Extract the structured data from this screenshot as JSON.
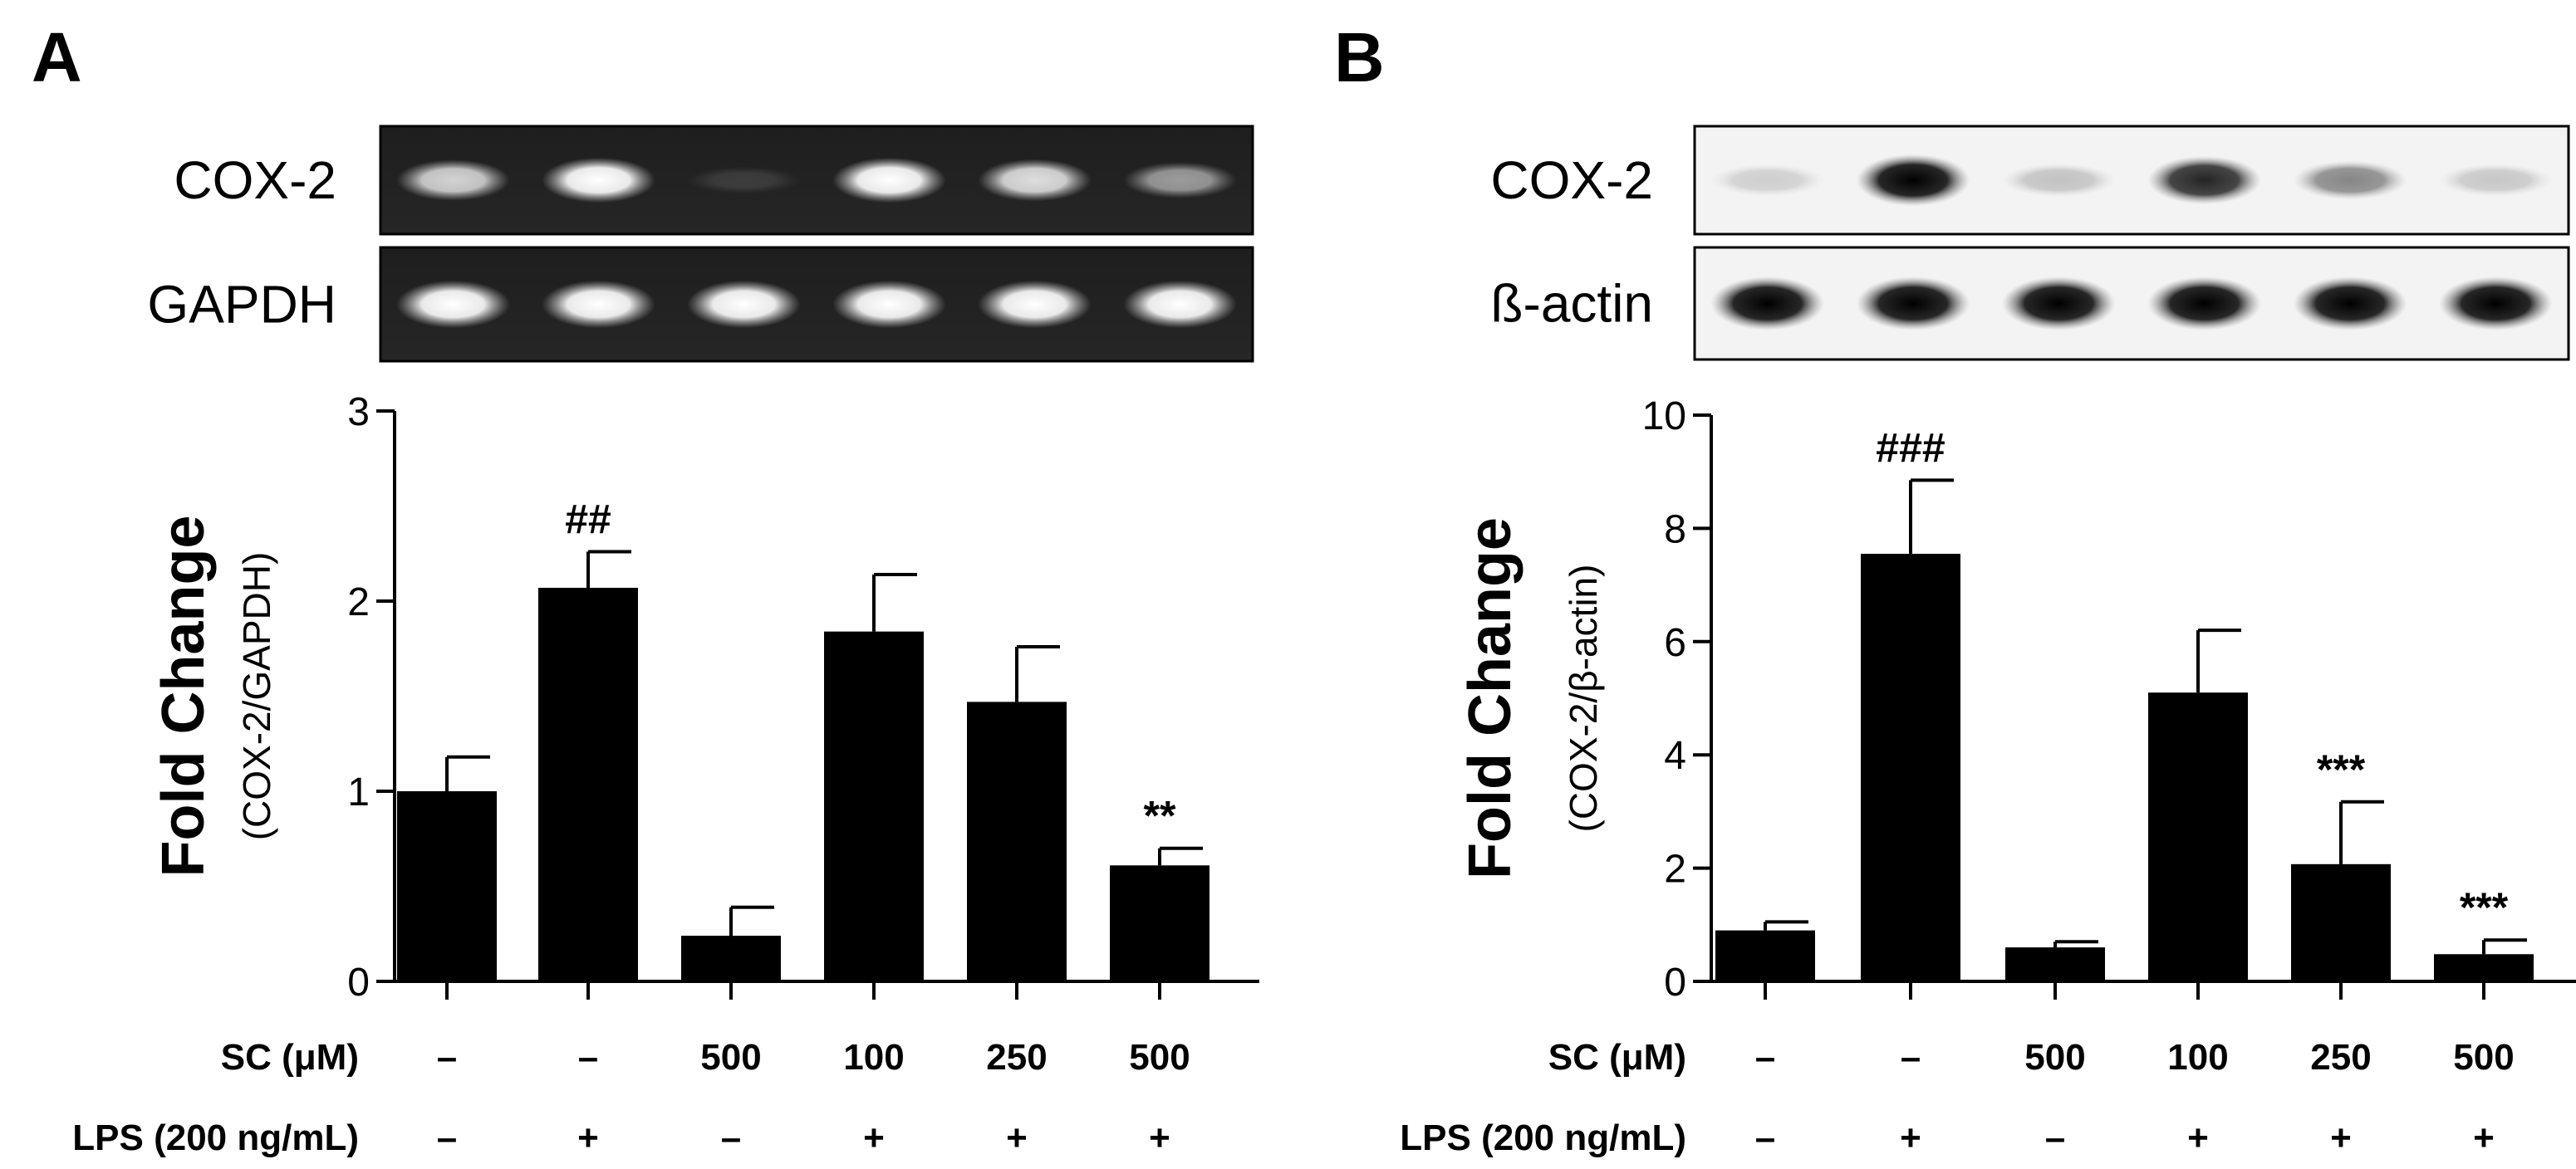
{
  "chart_data": [
    {
      "type": "bar",
      "panel": "A",
      "blot": {
        "style": "gel",
        "rows": [
          {
            "label": "COX-2",
            "intensities": [
              0.8,
              1.0,
              0.12,
              1.0,
              0.85,
              0.55
            ]
          },
          {
            "label": "GAPDH",
            "intensities": [
              1.0,
              1.0,
              1.0,
              1.0,
              1.0,
              1.0
            ]
          }
        ]
      },
      "ylabel": "Fold Change",
      "ylabel_sub": "(COX-2/GAPDH)",
      "ylim": [
        0,
        3
      ],
      "yticks": [
        0,
        1,
        2,
        3
      ],
      "values": [
        1.0,
        2.07,
        0.24,
        1.84,
        1.47,
        0.61
      ],
      "errors": [
        0.18,
        0.19,
        0.15,
        0.3,
        0.29,
        0.09
      ],
      "annotations": [
        "",
        "##",
        "",
        "",
        "",
        "**"
      ],
      "conditions": [
        {
          "label": "SC (μM)",
          "values": [
            "–",
            "–",
            "500",
            "100",
            "250",
            "500"
          ]
        },
        {
          "label": "LPS (200 ng/mL)",
          "values": [
            "–",
            "+",
            "–",
            "+",
            "+",
            "+"
          ]
        }
      ]
    },
    {
      "type": "bar",
      "panel": "B",
      "blot": {
        "style": "western",
        "rows": [
          {
            "label": "COX-2",
            "intensities": [
              0.15,
              1.0,
              0.2,
              0.85,
              0.45,
              0.18
            ]
          },
          {
            "label": "ß-actin",
            "intensities": [
              1.0,
              1.0,
              1.0,
              1.0,
              1.0,
              1.0
            ]
          }
        ]
      },
      "ylabel": "Fold Change",
      "ylabel_sub": "(COX-2/β-actin)",
      "ylim": [
        0,
        10
      ],
      "yticks": [
        0,
        2,
        4,
        6,
        8,
        10
      ],
      "values": [
        0.9,
        7.55,
        0.6,
        5.1,
        2.07,
        0.48
      ],
      "errors": [
        0.15,
        1.3,
        0.1,
        1.1,
        1.1,
        0.25
      ],
      "annotations": [
        "",
        "###",
        "",
        "",
        "***",
        "***"
      ],
      "conditions": [
        {
          "label": "SC (μM)",
          "values": [
            "–",
            "–",
            "500",
            "100",
            "250",
            "500"
          ]
        },
        {
          "label": "LPS (200 ng/mL)",
          "values": [
            "–",
            "+",
            "–",
            "+",
            "+",
            "+"
          ]
        }
      ]
    }
  ]
}
